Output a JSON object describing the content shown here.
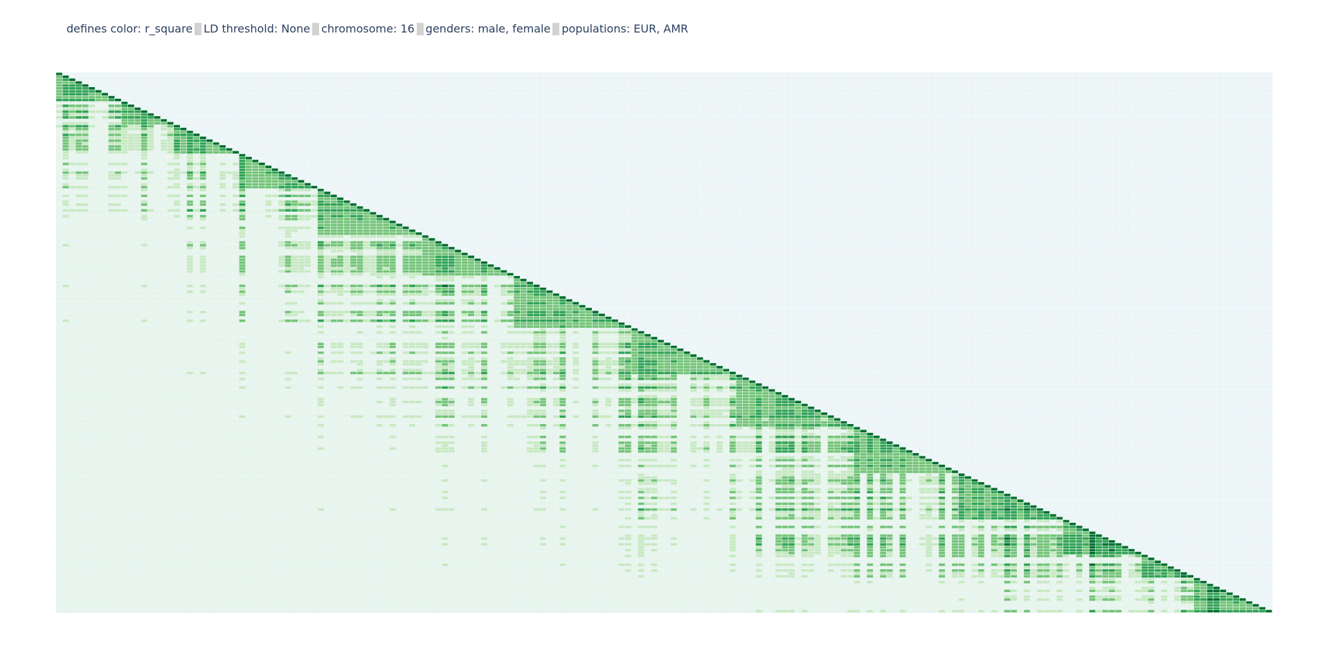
{
  "title": {
    "prefix": "defines color: ",
    "color_by": "r_square",
    "ld_label": "LD threshold: ",
    "ld_threshold": "None",
    "chrom_label": "chromosome: ",
    "chromosome": "16",
    "genders_label": "genders: ",
    "genders": "male, female",
    "pop_label": "populations: ",
    "populations": "EUR, AMR"
  },
  "chart_data": {
    "type": "heatmap",
    "subtype": "lower-triangular LD matrix (r_square)",
    "value_range": [
      0,
      1
    ],
    "grid": true,
    "colorscale": [
      "#e8f5ec",
      "#c7e9c0",
      "#74c476",
      "#31a354",
      "#006d2c"
    ],
    "empty_cell_color": "#eef6f8",
    "grid_line_color": "#d9eef2",
    "blocks": [
      {
        "from": 0,
        "to": 9,
        "r2": 0.75
      },
      {
        "from": 10,
        "to": 17,
        "r2": 0.85
      },
      {
        "from": 18,
        "to": 27,
        "r2": 0.8
      },
      {
        "from": 28,
        "to": 39,
        "r2": 0.8
      },
      {
        "from": 40,
        "to": 55,
        "r2": 0.7
      },
      {
        "from": 56,
        "to": 69,
        "r2": 0.65
      },
      {
        "from": 70,
        "to": 87,
        "r2": 0.75
      },
      {
        "from": 88,
        "to": 103,
        "r2": 0.7
      },
      {
        "from": 104,
        "to": 121,
        "r2": 0.7
      },
      {
        "from": 122,
        "to": 137,
        "r2": 0.75
      },
      {
        "from": 138,
        "to": 153,
        "r2": 0.8
      },
      {
        "from": 154,
        "to": 165,
        "r2": 0.9
      },
      {
        "from": 166,
        "to": 173,
        "r2": 0.85
      },
      {
        "from": 174,
        "to": 185,
        "r2": 0.95
      }
    ]
  }
}
